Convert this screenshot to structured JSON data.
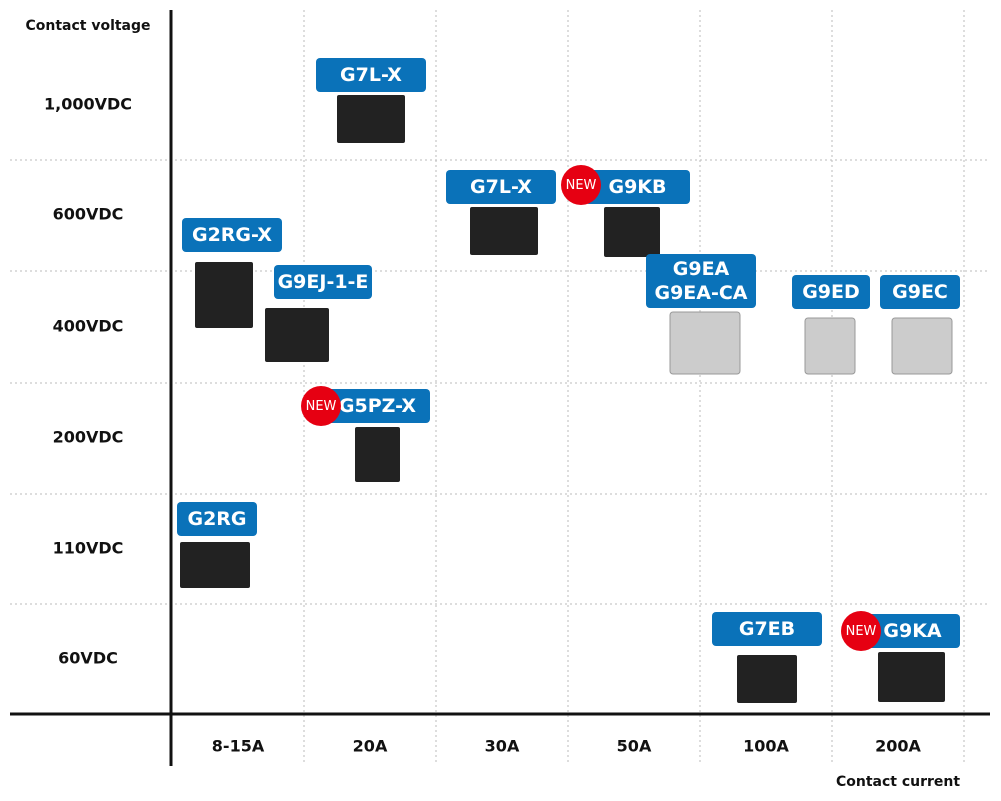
{
  "y_axis_title": "Contact voltage",
  "x_axis_title": "Contact current",
  "rows": [
    "1,000VDC",
    "600VDC",
    "400VDC",
    "200VDC",
    "110VDC",
    "60VDC"
  ],
  "columns": [
    "8-15A",
    "20A",
    "30A",
    "50A",
    "100A",
    "200A"
  ],
  "products": [
    {
      "label": "G7L-X"
    },
    {
      "label": "G7L-X"
    },
    {
      "label": "G9KB",
      "badge": "NEW"
    },
    {
      "label": "G2RG-X"
    },
    {
      "label": "G9EJ-1-E"
    },
    {
      "label": [
        "G9EA",
        "G9EA-CA"
      ]
    },
    {
      "label": "G9ED"
    },
    {
      "label": "G9EC"
    },
    {
      "label": "G5PZ-X",
      "badge": "NEW"
    },
    {
      "label": "G2RG"
    },
    {
      "label": "G7EB"
    },
    {
      "label": "G9KA",
      "badge": "NEW"
    }
  ]
}
